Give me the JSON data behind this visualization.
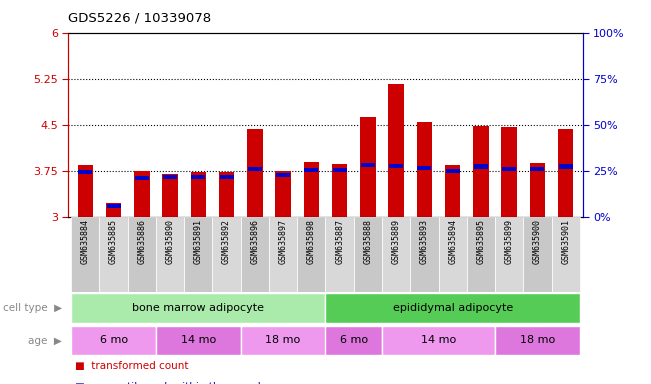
{
  "title": "GDS5226 / 10339078",
  "samples": [
    "GSM635884",
    "GSM635885",
    "GSM635886",
    "GSM635890",
    "GSM635891",
    "GSM635892",
    "GSM635896",
    "GSM635897",
    "GSM635898",
    "GSM635887",
    "GSM635888",
    "GSM635889",
    "GSM635893",
    "GSM635894",
    "GSM635895",
    "GSM635899",
    "GSM635900",
    "GSM635901"
  ],
  "transformed_counts": [
    3.85,
    3.22,
    3.75,
    3.7,
    3.73,
    3.73,
    4.43,
    3.75,
    3.9,
    3.87,
    4.63,
    5.17,
    4.55,
    3.85,
    4.48,
    4.47,
    3.88,
    4.43
  ],
  "percentile_ranks": [
    3.73,
    3.18,
    3.63,
    3.65,
    3.65,
    3.65,
    3.78,
    3.68,
    3.76,
    3.76,
    3.85,
    3.83,
    3.8,
    3.75,
    3.82,
    3.78,
    3.78,
    3.82
  ],
  "ymin": 3.0,
  "ymax": 6.0,
  "yticks": [
    3.0,
    3.75,
    4.5,
    5.25,
    6.0
  ],
  "ytick_labels": [
    "3",
    "3.75",
    "4.5",
    "5.25",
    "6"
  ],
  "right_yticks": [
    0,
    25,
    50,
    75,
    100
  ],
  "dotted_lines": [
    3.75,
    4.5,
    5.25
  ],
  "bar_color": "#cc0000",
  "blue_color": "#0000cc",
  "bar_width": 0.55,
  "cell_type_groups": [
    {
      "label": "bone marrow adipocyte",
      "start": 0,
      "end": 9,
      "color": "#aaeaaa"
    },
    {
      "label": "epididymal adipocyte",
      "start": 9,
      "end": 18,
      "color": "#55cc55"
    }
  ],
  "age_groups": [
    {
      "label": "6 mo",
      "start": 0,
      "end": 3,
      "color": "#ee99ee"
    },
    {
      "label": "14 mo",
      "start": 3,
      "end": 6,
      "color": "#dd77dd"
    },
    {
      "label": "18 mo",
      "start": 6,
      "end": 9,
      "color": "#ee99ee"
    },
    {
      "label": "6 mo",
      "start": 9,
      "end": 11,
      "color": "#dd77dd"
    },
    {
      "label": "14 mo",
      "start": 11,
      "end": 15,
      "color": "#ee99ee"
    },
    {
      "label": "18 mo",
      "start": 15,
      "end": 18,
      "color": "#dd77dd"
    }
  ],
  "tick_color_left": "#cc0000",
  "tick_color_right": "#0000cc",
  "label_gray": "#888888",
  "xticklabel_bg_even": "#c8c8c8",
  "xticklabel_bg_odd": "#d8d8d8"
}
